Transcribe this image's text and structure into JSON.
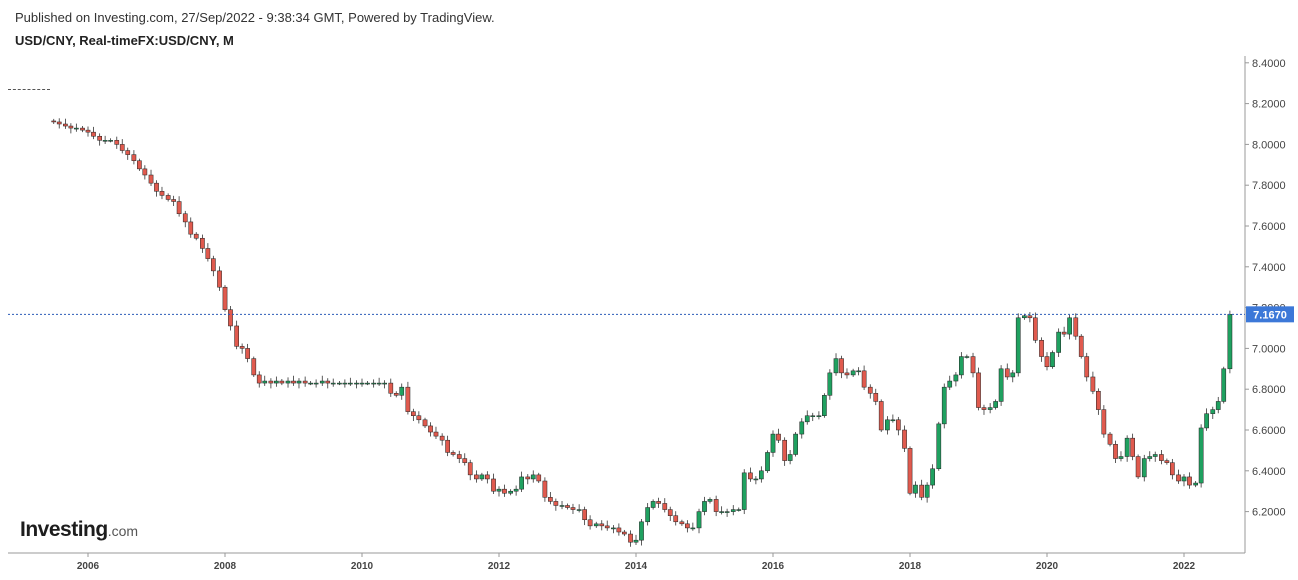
{
  "header": {
    "published": "Published on Investing.com, 27/Sep/2022 - 9:38:34 GMT, Powered by TradingView.",
    "symbol": "USD/CNY, Real-timeFX:USD/CNY, M"
  },
  "logo": {
    "brand": "Investing",
    "suffix": ".com"
  },
  "colors": {
    "up": "#1fa160",
    "down": "#e05a4e",
    "wick": "#333333",
    "price_line": "#2b5bb8",
    "price_label_bg": "#3c78d8"
  },
  "chart_data": {
    "type": "candlestick",
    "timeframe": "M",
    "y_axis": {
      "ticks": [
        "8.4000",
        "8.2000",
        "8.0000",
        "7.8000",
        "7.6000",
        "7.4000",
        "7.2000",
        "7.0000",
        "6.8000",
        "6.6000",
        "6.4000",
        "6.2000"
      ],
      "ylim": [
        6.0,
        8.45
      ],
      "position": "right"
    },
    "x_axis": {
      "ticks": [
        "2006",
        "2008",
        "2010",
        "2012",
        "2014",
        "2016",
        "2018",
        "2020",
        "2022"
      ],
      "xlim": [
        2005.0,
        2022.95
      ]
    },
    "current_price": "7.1670",
    "current_price_value": 7.167,
    "closes": [
      [
        2005.5,
        8.11
      ],
      [
        2005.58,
        8.1
      ],
      [
        2005.67,
        8.09
      ],
      [
        2005.75,
        8.08
      ],
      [
        2005.83,
        8.08
      ],
      [
        2005.92,
        8.07
      ],
      [
        2006.0,
        8.06
      ],
      [
        2006.08,
        8.04
      ],
      [
        2006.17,
        8.02
      ],
      [
        2006.25,
        8.02
      ],
      [
        2006.33,
        8.02
      ],
      [
        2006.42,
        8.0
      ],
      [
        2006.5,
        7.97
      ],
      [
        2006.58,
        7.95
      ],
      [
        2006.67,
        7.92
      ],
      [
        2006.75,
        7.88
      ],
      [
        2006.83,
        7.85
      ],
      [
        2006.92,
        7.81
      ],
      [
        2007.0,
        7.77
      ],
      [
        2007.08,
        7.75
      ],
      [
        2007.17,
        7.73
      ],
      [
        2007.25,
        7.72
      ],
      [
        2007.33,
        7.66
      ],
      [
        2007.42,
        7.62
      ],
      [
        2007.5,
        7.56
      ],
      [
        2007.58,
        7.54
      ],
      [
        2007.67,
        7.49
      ],
      [
        2007.75,
        7.44
      ],
      [
        2007.83,
        7.38
      ],
      [
        2007.92,
        7.3
      ],
      [
        2008.0,
        7.19
      ],
      [
        2008.08,
        7.11
      ],
      [
        2008.17,
        7.01
      ],
      [
        2008.25,
        7.0
      ],
      [
        2008.33,
        6.95
      ],
      [
        2008.42,
        6.87
      ],
      [
        2008.5,
        6.83
      ],
      [
        2008.58,
        6.84
      ],
      [
        2008.67,
        6.83
      ],
      [
        2008.75,
        6.84
      ],
      [
        2008.83,
        6.83
      ],
      [
        2008.92,
        6.84
      ],
      [
        2009.0,
        6.83
      ],
      [
        2009.08,
        6.84
      ],
      [
        2009.17,
        6.83
      ],
      [
        2009.25,
        6.83
      ],
      [
        2009.33,
        6.83
      ],
      [
        2009.42,
        6.84
      ],
      [
        2009.5,
        6.83
      ],
      [
        2009.58,
        6.83
      ],
      [
        2009.67,
        6.83
      ],
      [
        2009.75,
        6.83
      ],
      [
        2009.83,
        6.83
      ],
      [
        2009.92,
        6.83
      ],
      [
        2010.0,
        6.83
      ],
      [
        2010.08,
        6.83
      ],
      [
        2010.17,
        6.83
      ],
      [
        2010.25,
        6.83
      ],
      [
        2010.33,
        6.83
      ],
      [
        2010.42,
        6.78
      ],
      [
        2010.5,
        6.77
      ],
      [
        2010.58,
        6.81
      ],
      [
        2010.67,
        6.69
      ],
      [
        2010.75,
        6.67
      ],
      [
        2010.83,
        6.65
      ],
      [
        2010.92,
        6.62
      ],
      [
        2011.0,
        6.59
      ],
      [
        2011.08,
        6.57
      ],
      [
        2011.17,
        6.55
      ],
      [
        2011.25,
        6.49
      ],
      [
        2011.33,
        6.48
      ],
      [
        2011.42,
        6.46
      ],
      [
        2011.5,
        6.44
      ],
      [
        2011.58,
        6.38
      ],
      [
        2011.67,
        6.36
      ],
      [
        2011.75,
        6.38
      ],
      [
        2011.83,
        6.36
      ],
      [
        2011.92,
        6.3
      ],
      [
        2012.0,
        6.31
      ],
      [
        2012.08,
        6.29
      ],
      [
        2012.17,
        6.3
      ],
      [
        2012.25,
        6.31
      ],
      [
        2012.33,
        6.37
      ],
      [
        2012.42,
        6.36
      ],
      [
        2012.5,
        6.38
      ],
      [
        2012.58,
        6.35
      ],
      [
        2012.67,
        6.27
      ],
      [
        2012.75,
        6.25
      ],
      [
        2012.83,
        6.23
      ],
      [
        2012.92,
        6.23
      ],
      [
        2013.0,
        6.22
      ],
      [
        2013.08,
        6.21
      ],
      [
        2013.17,
        6.21
      ],
      [
        2013.25,
        6.16
      ],
      [
        2013.33,
        6.13
      ],
      [
        2013.42,
        6.14
      ],
      [
        2013.5,
        6.13
      ],
      [
        2013.58,
        6.12
      ],
      [
        2013.67,
        6.12
      ],
      [
        2013.75,
        6.1
      ],
      [
        2013.83,
        6.09
      ],
      [
        2013.92,
        6.05
      ],
      [
        2014.0,
        6.06
      ],
      [
        2014.08,
        6.15
      ],
      [
        2014.17,
        6.22
      ],
      [
        2014.25,
        6.25
      ],
      [
        2014.33,
        6.24
      ],
      [
        2014.42,
        6.21
      ],
      [
        2014.5,
        6.18
      ],
      [
        2014.58,
        6.15
      ],
      [
        2014.67,
        6.14
      ],
      [
        2014.75,
        6.12
      ],
      [
        2014.83,
        6.12
      ],
      [
        2014.92,
        6.2
      ],
      [
        2015.0,
        6.25
      ],
      [
        2015.08,
        6.26
      ],
      [
        2015.17,
        6.2
      ],
      [
        2015.25,
        6.2
      ],
      [
        2015.33,
        6.2
      ],
      [
        2015.42,
        6.21
      ],
      [
        2015.5,
        6.21
      ],
      [
        2015.58,
        6.39
      ],
      [
        2015.67,
        6.36
      ],
      [
        2015.75,
        6.36
      ],
      [
        2015.83,
        6.4
      ],
      [
        2015.92,
        6.49
      ],
      [
        2016.0,
        6.58
      ],
      [
        2016.08,
        6.55
      ],
      [
        2016.17,
        6.45
      ],
      [
        2016.25,
        6.48
      ],
      [
        2016.33,
        6.58
      ],
      [
        2016.42,
        6.64
      ],
      [
        2016.5,
        6.67
      ],
      [
        2016.58,
        6.67
      ],
      [
        2016.67,
        6.67
      ],
      [
        2016.75,
        6.77
      ],
      [
        2016.83,
        6.88
      ],
      [
        2016.92,
        6.95
      ],
      [
        2017.0,
        6.88
      ],
      [
        2017.08,
        6.87
      ],
      [
        2017.17,
        6.89
      ],
      [
        2017.25,
        6.89
      ],
      [
        2017.33,
        6.81
      ],
      [
        2017.42,
        6.78
      ],
      [
        2017.5,
        6.74
      ],
      [
        2017.58,
        6.6
      ],
      [
        2017.67,
        6.65
      ],
      [
        2017.75,
        6.65
      ],
      [
        2017.83,
        6.6
      ],
      [
        2017.92,
        6.51
      ],
      [
        2018.0,
        6.29
      ],
      [
        2018.08,
        6.33
      ],
      [
        2018.17,
        6.27
      ],
      [
        2018.25,
        6.33
      ],
      [
        2018.33,
        6.41
      ],
      [
        2018.42,
        6.63
      ],
      [
        2018.5,
        6.81
      ],
      [
        2018.58,
        6.84
      ],
      [
        2018.67,
        6.87
      ],
      [
        2018.75,
        6.96
      ],
      [
        2018.83,
        6.96
      ],
      [
        2018.92,
        6.88
      ],
      [
        2019.0,
        6.71
      ],
      [
        2019.08,
        6.7
      ],
      [
        2019.17,
        6.71
      ],
      [
        2019.25,
        6.74
      ],
      [
        2019.33,
        6.9
      ],
      [
        2019.42,
        6.86
      ],
      [
        2019.5,
        6.88
      ],
      [
        2019.58,
        7.15
      ],
      [
        2019.67,
        7.16
      ],
      [
        2019.75,
        7.15
      ],
      [
        2019.83,
        7.04
      ],
      [
        2019.92,
        6.96
      ],
      [
        2020.0,
        6.91
      ],
      [
        2020.08,
        6.98
      ],
      [
        2020.17,
        7.08
      ],
      [
        2020.25,
        7.07
      ],
      [
        2020.33,
        7.15
      ],
      [
        2020.42,
        7.06
      ],
      [
        2020.5,
        6.96
      ],
      [
        2020.58,
        6.86
      ],
      [
        2020.67,
        6.79
      ],
      [
        2020.75,
        6.7
      ],
      [
        2020.83,
        6.58
      ],
      [
        2020.92,
        6.53
      ],
      [
        2021.0,
        6.46
      ],
      [
        2021.08,
        6.47
      ],
      [
        2021.17,
        6.56
      ],
      [
        2021.25,
        6.47
      ],
      [
        2021.33,
        6.37
      ],
      [
        2021.42,
        6.46
      ],
      [
        2021.5,
        6.47
      ],
      [
        2021.58,
        6.48
      ],
      [
        2021.67,
        6.45
      ],
      [
        2021.75,
        6.44
      ],
      [
        2021.83,
        6.38
      ],
      [
        2021.92,
        6.35
      ],
      [
        2022.0,
        6.37
      ],
      [
        2022.08,
        6.33
      ],
      [
        2022.17,
        6.34
      ],
      [
        2022.25,
        6.61
      ],
      [
        2022.33,
        6.68
      ],
      [
        2022.42,
        6.7
      ],
      [
        2022.5,
        6.74
      ],
      [
        2022.58,
        6.9
      ],
      [
        2022.67,
        7.167
      ]
    ]
  }
}
